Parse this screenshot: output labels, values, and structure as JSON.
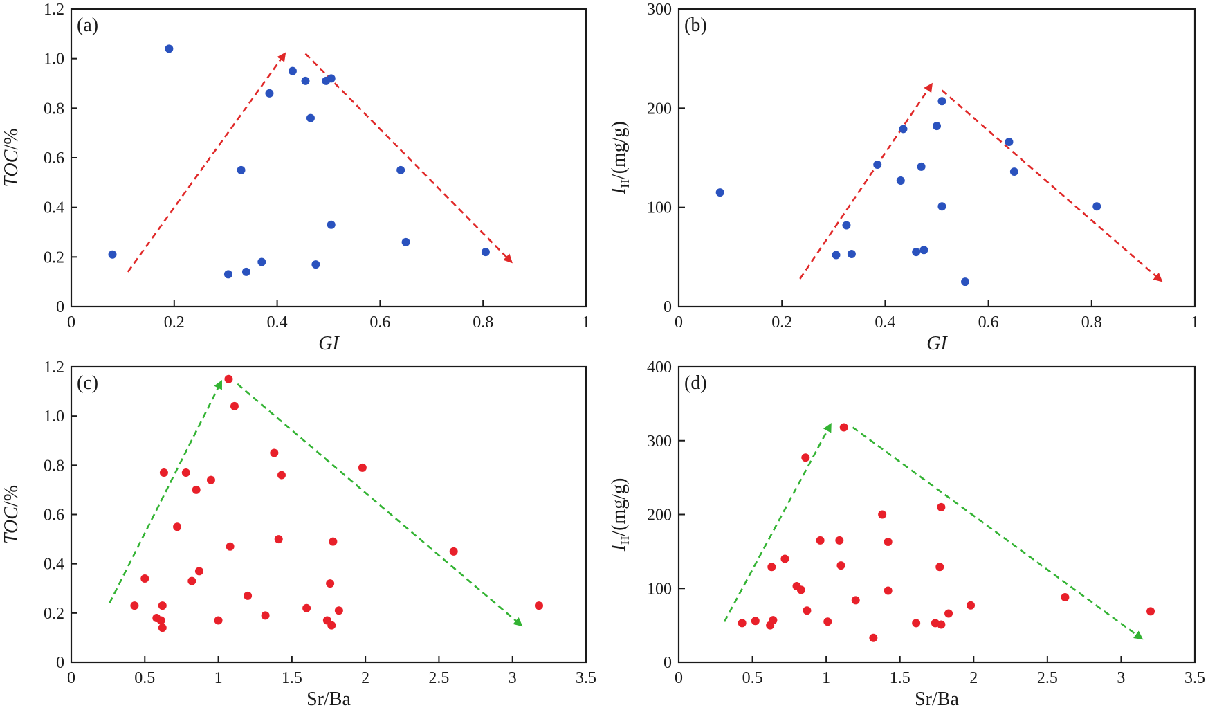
{
  "colors": {
    "blue": "#2a52be",
    "red": "#e8202a",
    "arrow_red": "#e02828",
    "arrow_green": "#33b333",
    "axis": "#1a1a1a"
  },
  "chart_data": [
    {
      "id": "a",
      "type": "scatter",
      "panel_label": "(a)",
      "xlabel": "GI",
      "ylabel": {
        "main": "TOC",
        "sub": "",
        "unit": "/%"
      },
      "xlim": [
        0,
        1
      ],
      "ylim": [
        0,
        1.2
      ],
      "xticks": [
        {
          "v": 0,
          "label": "0"
        },
        {
          "v": 0.2,
          "label": "0.2"
        },
        {
          "v": 0.4,
          "label": "0.4"
        },
        {
          "v": 0.6,
          "label": "0.6"
        },
        {
          "v": 0.8,
          "label": "0.8"
        },
        {
          "v": 1,
          "label": "1"
        }
      ],
      "yticks": [
        {
          "v": 0,
          "label": "0"
        },
        {
          "v": 0.2,
          "label": "0.2"
        },
        {
          "v": 0.4,
          "label": "0.4"
        },
        {
          "v": 0.6,
          "label": "0.6"
        },
        {
          "v": 0.8,
          "label": "0.8"
        },
        {
          "v": 1.0,
          "label": "1.0"
        },
        {
          "v": 1.2,
          "label": "1.2"
        }
      ],
      "color": "blue",
      "arrow_color": "arrow_red",
      "points": [
        [
          0.08,
          0.21
        ],
        [
          0.19,
          1.04
        ],
        [
          0.305,
          0.13
        ],
        [
          0.33,
          0.55
        ],
        [
          0.34,
          0.14
        ],
        [
          0.37,
          0.18
        ],
        [
          0.385,
          0.86
        ],
        [
          0.43,
          0.95
        ],
        [
          0.455,
          0.91
        ],
        [
          0.465,
          0.76
        ],
        [
          0.475,
          0.17
        ],
        [
          0.495,
          0.91
        ],
        [
          0.505,
          0.92
        ],
        [
          0.505,
          0.33
        ],
        [
          0.64,
          0.55
        ],
        [
          0.65,
          0.26
        ],
        [
          0.805,
          0.22
        ]
      ],
      "arrows": [
        [
          [
            0.11,
            0.14
          ],
          [
            0.415,
            1.02
          ]
        ],
        [
          [
            0.455,
            1.02
          ],
          [
            0.855,
            0.18
          ]
        ]
      ]
    },
    {
      "id": "b",
      "type": "scatter",
      "panel_label": "(b)",
      "xlabel": "GI",
      "ylabel": {
        "main": "I",
        "sub": "H",
        "unit": "/(mg/g)"
      },
      "xlim": [
        0,
        1
      ],
      "ylim": [
        0,
        300
      ],
      "xticks": [
        {
          "v": 0,
          "label": "0"
        },
        {
          "v": 0.2,
          "label": "0.2"
        },
        {
          "v": 0.4,
          "label": "0.4"
        },
        {
          "v": 0.6,
          "label": "0.6"
        },
        {
          "v": 0.8,
          "label": "0.8"
        },
        {
          "v": 1,
          "label": "1"
        }
      ],
      "yticks": [
        {
          "v": 0,
          "label": "0"
        },
        {
          "v": 100,
          "label": "100"
        },
        {
          "v": 200,
          "label": "200"
        },
        {
          "v": 300,
          "label": "300"
        }
      ],
      "color": "blue",
      "arrow_color": "arrow_red",
      "points": [
        [
          0.08,
          115
        ],
        [
          0.305,
          52
        ],
        [
          0.325,
          82
        ],
        [
          0.335,
          53
        ],
        [
          0.385,
          143
        ],
        [
          0.43,
          127
        ],
        [
          0.435,
          179
        ],
        [
          0.46,
          55
        ],
        [
          0.47,
          141
        ],
        [
          0.475,
          57
        ],
        [
          0.5,
          182
        ],
        [
          0.51,
          101
        ],
        [
          0.51,
          207
        ],
        [
          0.555,
          25
        ],
        [
          0.64,
          166
        ],
        [
          0.65,
          136
        ],
        [
          0.81,
          101
        ]
      ],
      "arrows": [
        [
          [
            0.235,
            28
          ],
          [
            0.49,
            224
          ]
        ],
        [
          [
            0.51,
            218
          ],
          [
            0.935,
            26
          ]
        ]
      ]
    },
    {
      "id": "c",
      "type": "scatter",
      "panel_label": "(c)",
      "xlabel": "Sr/Ba",
      "ylabel": {
        "main": "TOC",
        "sub": "",
        "unit": "/%"
      },
      "xlim": [
        0,
        3.5
      ],
      "ylim": [
        0,
        1.2
      ],
      "xticks": [
        {
          "v": 0,
          "label": "0"
        },
        {
          "v": 0.5,
          "label": "0.5"
        },
        {
          "v": 1,
          "label": "1"
        },
        {
          "v": 1.5,
          "label": "1.5"
        },
        {
          "v": 2,
          "label": "2"
        },
        {
          "v": 2.5,
          "label": "2.5"
        },
        {
          "v": 3,
          "label": "3"
        },
        {
          "v": 3.5,
          "label": "3.5"
        }
      ],
      "yticks": [
        {
          "v": 0,
          "label": "0"
        },
        {
          "v": 0.2,
          "label": "0.2"
        },
        {
          "v": 0.4,
          "label": "0.4"
        },
        {
          "v": 0.6,
          "label": "0.6"
        },
        {
          "v": 0.8,
          "label": "0.8"
        },
        {
          "v": 1.0,
          "label": "1.0"
        },
        {
          "v": 1.2,
          "label": "1.2"
        }
      ],
      "color": "red",
      "arrow_color": "arrow_green",
      "points": [
        [
          0.43,
          0.23
        ],
        [
          0.5,
          0.34
        ],
        [
          0.58,
          0.18
        ],
        [
          0.61,
          0.17
        ],
        [
          0.62,
          0.23
        ],
        [
          0.62,
          0.14
        ],
        [
          0.63,
          0.77
        ],
        [
          0.72,
          0.55
        ],
        [
          0.78,
          0.77
        ],
        [
          0.82,
          0.33
        ],
        [
          0.85,
          0.7
        ],
        [
          0.87,
          0.37
        ],
        [
          0.95,
          0.74
        ],
        [
          1.0,
          0.17
        ],
        [
          1.07,
          1.15
        ],
        [
          1.08,
          0.47
        ],
        [
          1.11,
          1.04
        ],
        [
          1.2,
          0.27
        ],
        [
          1.32,
          0.19
        ],
        [
          1.38,
          0.85
        ],
        [
          1.41,
          0.5
        ],
        [
          1.43,
          0.76
        ],
        [
          1.6,
          0.22
        ],
        [
          1.74,
          0.17
        ],
        [
          1.76,
          0.32
        ],
        [
          1.77,
          0.15
        ],
        [
          1.78,
          0.49
        ],
        [
          1.82,
          0.21
        ],
        [
          1.98,
          0.79
        ],
        [
          2.6,
          0.45
        ],
        [
          3.18,
          0.23
        ]
      ],
      "arrows": [
        [
          [
            0.26,
            0.24
          ],
          [
            1.02,
            1.14
          ]
        ],
        [
          [
            1.13,
            1.13
          ],
          [
            3.06,
            0.15
          ]
        ]
      ]
    },
    {
      "id": "d",
      "type": "scatter",
      "panel_label": "(d)",
      "xlabel": "Sr/Ba",
      "ylabel": {
        "main": "I",
        "sub": "H",
        "unit": "/(mg/g)"
      },
      "xlim": [
        0,
        3.5
      ],
      "ylim": [
        0,
        400
      ],
      "xticks": [
        {
          "v": 0,
          "label": "0"
        },
        {
          "v": 0.5,
          "label": "0.5"
        },
        {
          "v": 1,
          "label": "1"
        },
        {
          "v": 1.5,
          "label": "1.5"
        },
        {
          "v": 2,
          "label": "2"
        },
        {
          "v": 2.5,
          "label": "2.5"
        },
        {
          "v": 3,
          "label": "3"
        },
        {
          "v": 3.5,
          "label": "3.5"
        }
      ],
      "yticks": [
        {
          "v": 0,
          "label": "0"
        },
        {
          "v": 100,
          "label": "100"
        },
        {
          "v": 200,
          "label": "200"
        },
        {
          "v": 300,
          "label": "300"
        },
        {
          "v": 400,
          "label": "400"
        }
      ],
      "color": "red",
      "arrow_color": "arrow_green",
      "points": [
        [
          0.43,
          53
        ],
        [
          0.52,
          56
        ],
        [
          0.62,
          50
        ],
        [
          0.63,
          129
        ],
        [
          0.64,
          57
        ],
        [
          0.72,
          140
        ],
        [
          0.8,
          103
        ],
        [
          0.83,
          98
        ],
        [
          0.86,
          277
        ],
        [
          0.87,
          70
        ],
        [
          0.96,
          165
        ],
        [
          1.01,
          55
        ],
        [
          1.09,
          165
        ],
        [
          1.1,
          131
        ],
        [
          1.12,
          318
        ],
        [
          1.2,
          84
        ],
        [
          1.32,
          33
        ],
        [
          1.38,
          200
        ],
        [
          1.42,
          97
        ],
        [
          1.42,
          163
        ],
        [
          1.61,
          53
        ],
        [
          1.74,
          53
        ],
        [
          1.78,
          51
        ],
        [
          1.77,
          129
        ],
        [
          1.78,
          210
        ],
        [
          1.83,
          66
        ],
        [
          1.98,
          77
        ],
        [
          2.62,
          88
        ],
        [
          3.2,
          69
        ]
      ],
      "arrows": [
        [
          [
            0.31,
            55
          ],
          [
            1.03,
            322
          ]
        ],
        [
          [
            1.18,
            318
          ],
          [
            3.14,
            32
          ]
        ]
      ]
    }
  ]
}
